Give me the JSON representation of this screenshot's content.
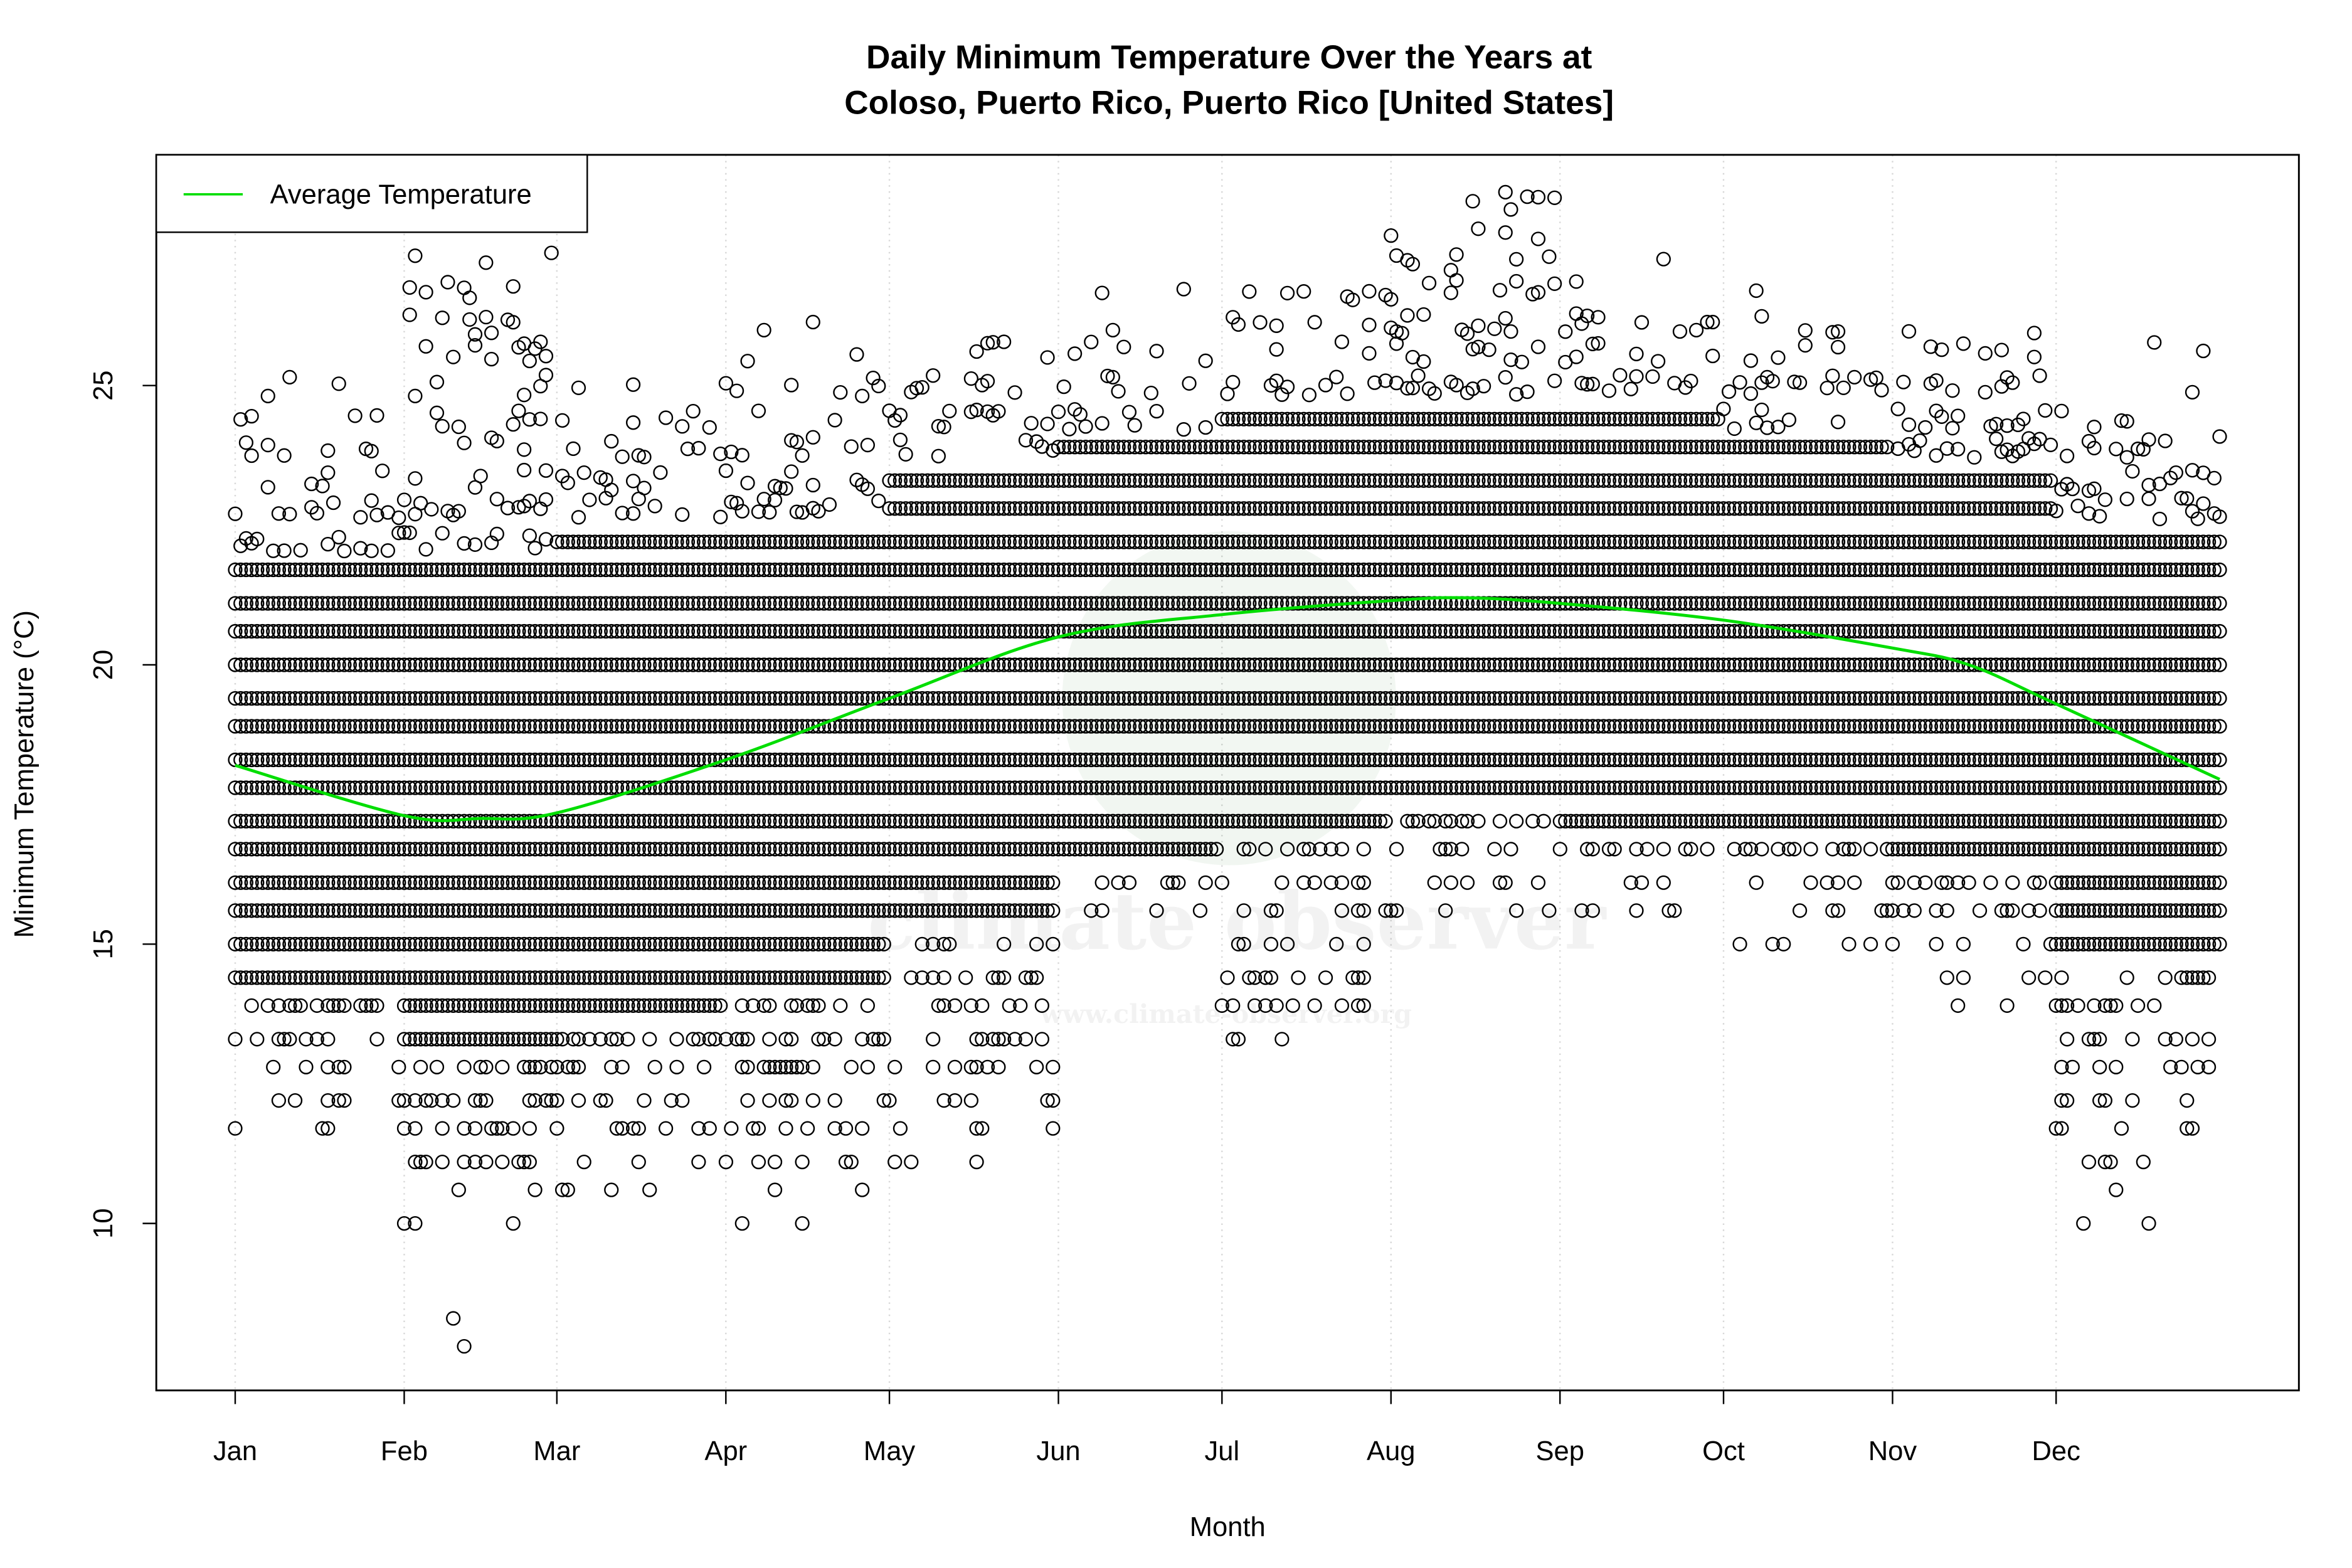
{
  "chart_data": {
    "type": "scatter",
    "title_line1": "Daily Minimum Temperature Over the Years at",
    "title_line2": "Coloso, Puerto Rico, Puerto Rico [United States]",
    "xlabel": "Month",
    "ylabel": "Minimum Temperature (°C)",
    "x_tick_labels": [
      "Jan",
      "Feb",
      "Mar",
      "Apr",
      "May",
      "Jun",
      "Jul",
      "Aug",
      "Sep",
      "Oct",
      "Nov",
      "Dec"
    ],
    "y_ticks": [
      10,
      15,
      20,
      25
    ],
    "ylim": [
      7.3,
      28.8
    ],
    "grid": "vertical dotted at month ticks",
    "legend": {
      "position": "top-left",
      "entries": [
        {
          "name": "Average Temperature",
          "color": "#00dd00"
        }
      ]
    },
    "point_color": "#000000",
    "temperature_levels": [
      10.0,
      10.6,
      11.1,
      11.7,
      12.2,
      12.8,
      13.3,
      13.9,
      14.4,
      15.0,
      15.6,
      16.1,
      16.7,
      17.2,
      17.8,
      18.3,
      18.9,
      19.4,
      20.0,
      20.6,
      21.1,
      21.7,
      22.2,
      22.8,
      23.3,
      23.9,
      24.4,
      25.0,
      25.6,
      26.1,
      26.7,
      27.2,
      27.8,
      28.3
    ],
    "monthly_scatter": [
      {
        "month": "Jan",
        "dense_min": 14.4,
        "dense_max": 21.7,
        "min": 11.7,
        "max": 25.0
      },
      {
        "month": "Feb",
        "dense_min": 13.3,
        "dense_max": 21.7,
        "min": 7.8,
        "max": 27.2
      },
      {
        "month": "Mar",
        "dense_min": 13.9,
        "dense_max": 22.2,
        "min": 10.6,
        "max": 25.0
      },
      {
        "month": "Apr",
        "dense_min": 14.4,
        "dense_max": 22.2,
        "min": 10.0,
        "max": 26.1
      },
      {
        "month": "May",
        "dense_min": 15.6,
        "dense_max": 23.3,
        "min": 11.1,
        "max": 25.8
      },
      {
        "month": "Jun",
        "dense_min": 16.7,
        "dense_max": 23.9,
        "min": 15.6,
        "max": 26.7
      },
      {
        "month": "Jul",
        "dense_min": 17.2,
        "dense_max": 24.4,
        "min": 13.3,
        "max": 26.9
      },
      {
        "month": "Aug",
        "dense_min": 17.8,
        "dense_max": 24.4,
        "min": 15.6,
        "max": 28.3
      },
      {
        "month": "Sep",
        "dense_min": 17.2,
        "dense_max": 24.4,
        "min": 15.6,
        "max": 27.2
      },
      {
        "month": "Oct",
        "dense_min": 17.2,
        "dense_max": 23.9,
        "min": 15.0,
        "max": 26.7
      },
      {
        "month": "Nov",
        "dense_min": 16.7,
        "dense_max": 23.3,
        "min": 13.9,
        "max": 26.1
      },
      {
        "month": "Dec",
        "dense_min": 15.0,
        "dense_max": 22.2,
        "min": 10.0,
        "max": 25.8
      }
    ],
    "average_series": {
      "name": "Average Temperature",
      "day_of_year": [
        0,
        31,
        45,
        59,
        90,
        120,
        151,
        181,
        212,
        226,
        243,
        273,
        304,
        318,
        334,
        364
      ],
      "values": [
        18.2,
        17.3,
        17.25,
        17.35,
        18.3,
        19.4,
        20.5,
        20.9,
        21.15,
        21.2,
        21.1,
        20.8,
        20.3,
        20.0,
        19.3,
        17.95
      ]
    }
  },
  "watermark": {
    "logo_text": "climate observer",
    "url": "www.climate-observer.org"
  }
}
